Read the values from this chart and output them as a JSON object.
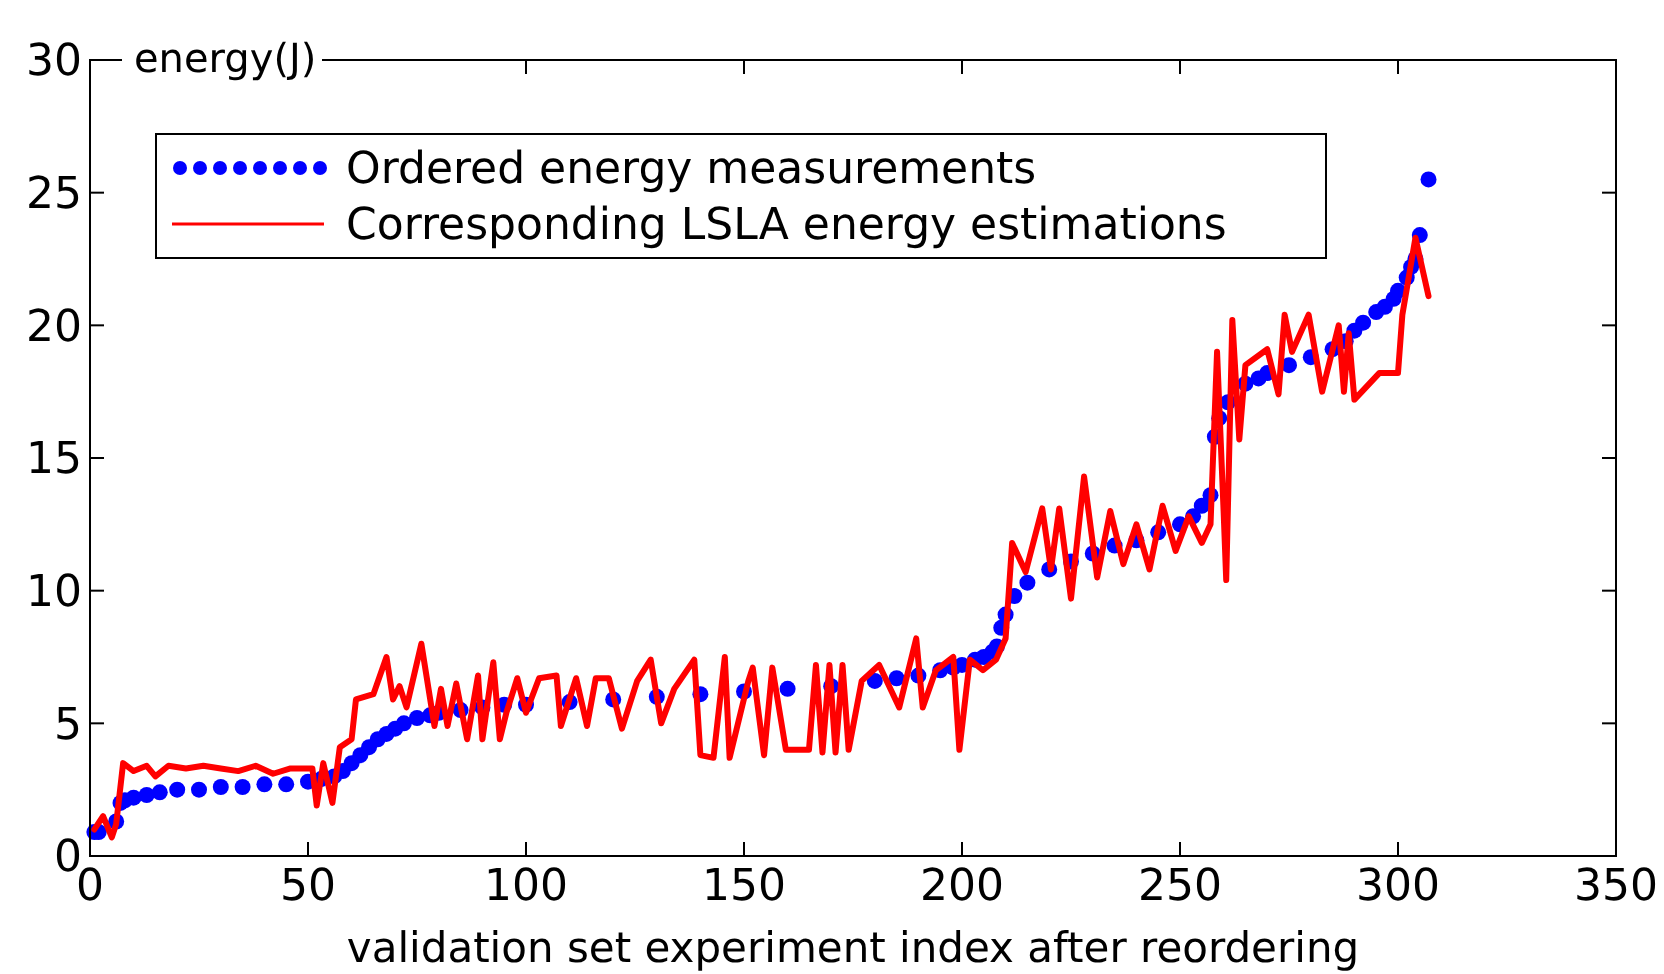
{
  "chart_data": {
    "type": "scatter",
    "xlabel": "validation set experiment index after reordering",
    "ylabel": "energy(J)",
    "xlim": [
      0,
      350
    ],
    "ylim": [
      0,
      30
    ],
    "xticks": [
      0,
      50,
      100,
      150,
      200,
      250,
      300,
      350
    ],
    "yticks": [
      0,
      5,
      10,
      15,
      20,
      25,
      30
    ],
    "grid": false,
    "legend": "top left",
    "series": [
      {
        "name": "Ordered energy measurements",
        "marker": "circle",
        "color": "#0000ff",
        "x": [
          1,
          2,
          6,
          7,
          8,
          10,
          13,
          16,
          20,
          25,
          30,
          35,
          40,
          45,
          50,
          53,
          56,
          58,
          60,
          62,
          64,
          66,
          68,
          70,
          72,
          75,
          78,
          80,
          85,
          90,
          95,
          100,
          110,
          120,
          130,
          140,
          150,
          160,
          170,
          180,
          185,
          190,
          195,
          198,
          200,
          203,
          205,
          207,
          208,
          209,
          210,
          212,
          215,
          220,
          225,
          230,
          235,
          240,
          245,
          250,
          253,
          255,
          257,
          258,
          259,
          261,
          265,
          268,
          270,
          275,
          280,
          285,
          288,
          290,
          292,
          295,
          297,
          299,
          300,
          302,
          303,
          304,
          305,
          307
        ],
        "values": [
          0.9,
          0.9,
          1.3,
          2.0,
          2.1,
          2.2,
          2.3,
          2.4,
          2.5,
          2.5,
          2.6,
          2.6,
          2.7,
          2.7,
          2.8,
          2.9,
          3.0,
          3.2,
          3.5,
          3.8,
          4.1,
          4.4,
          4.6,
          4.8,
          5.0,
          5.2,
          5.3,
          5.4,
          5.5,
          5.6,
          5.7,
          5.7,
          5.8,
          5.9,
          6.0,
          6.1,
          6.2,
          6.3,
          6.4,
          6.6,
          6.7,
          6.8,
          7.0,
          7.1,
          7.2,
          7.4,
          7.5,
          7.7,
          7.9,
          8.6,
          9.1,
          9.8,
          10.3,
          10.8,
          11.1,
          11.4,
          11.7,
          11.9,
          12.2,
          12.5,
          12.8,
          13.2,
          13.6,
          15.8,
          16.5,
          17.1,
          17.8,
          18.0,
          18.2,
          18.5,
          18.8,
          19.1,
          19.4,
          19.8,
          20.1,
          20.5,
          20.7,
          21.0,
          21.3,
          21.8,
          22.2,
          22.5,
          23.4,
          25.5
        ]
      },
      {
        "name": "Corresponding LSLA energy estimations",
        "type": "line",
        "marker": "none",
        "line_style": "solid",
        "color": "#ff0000",
        "x": [
          1,
          3,
          5,
          6,
          7.6,
          10,
          13,
          15,
          18,
          22,
          26,
          30,
          34,
          38,
          42,
          46,
          49,
          51,
          52,
          53.5,
          55.6,
          57.3,
          60,
          61,
          65,
          68,
          69.5,
          71,
          72.6,
          76,
          79,
          80.5,
          82,
          84,
          86.5,
          89,
          90,
          92.5,
          94,
          95.5,
          98,
          100,
          103,
          107,
          108,
          111.5,
          114,
          116,
          119,
          122,
          125.5,
          128.6,
          131,
          134,
          138.6,
          140,
          143,
          145.6,
          146.7,
          151,
          152,
          154.6,
          156.5,
          159.6,
          164.9,
          166.5,
          168,
          169.6,
          171,
          172.6,
          174,
          177,
          181,
          185.6,
          189.5,
          191,
          194,
          198,
          199.4,
          201.8,
          204.8,
          207.8,
          210,
          211.5,
          214.6,
          218.4,
          220.4,
          222.3,
          225,
          228,
          231,
          234,
          237,
          240,
          243,
          246,
          249,
          252,
          255,
          257,
          258.5,
          260,
          260.6,
          262,
          263.6,
          265,
          270,
          272.6,
          274,
          275.7,
          279.5,
          282.6,
          286.4,
          287.6,
          288.7,
          290,
          295.7,
          300,
          301,
          304,
          307
        ],
        "values": [
          1.0,
          1.5,
          0.7,
          1.2,
          3.5,
          3.2,
          3.4,
          3.0,
          3.4,
          3.3,
          3.4,
          3.3,
          3.2,
          3.4,
          3.1,
          3.3,
          3.3,
          3.3,
          1.9,
          3.5,
          2.0,
          4.1,
          4.4,
          5.9,
          6.1,
          7.5,
          5.9,
          6.4,
          5.6,
          8.0,
          4.9,
          6.3,
          4.9,
          6.5,
          4.4,
          6.8,
          4.4,
          7.3,
          4.4,
          5.4,
          6.7,
          5.4,
          6.7,
          6.8,
          4.9,
          6.7,
          4.9,
          6.7,
          6.7,
          4.8,
          6.6,
          7.4,
          5.0,
          6.3,
          7.4,
          3.8,
          3.7,
          7.5,
          3.7,
          6.6,
          7.1,
          3.8,
          7.1,
          4.0,
          4.0,
          7.2,
          3.9,
          7.2,
          3.9,
          7.2,
          4.0,
          6.6,
          7.2,
          5.6,
          8.2,
          5.6,
          7.0,
          7.5,
          4.0,
          7.4,
          7.0,
          7.4,
          8.2,
          11.8,
          10.7,
          13.1,
          10.8,
          13.1,
          9.7,
          14.3,
          10.5,
          13.0,
          11.0,
          12.5,
          10.8,
          13.2,
          11.5,
          12.8,
          11.8,
          12.5,
          19.0,
          13.0,
          10.4,
          20.2,
          15.7,
          18.5,
          19.1,
          17.4,
          20.4,
          19.0,
          20.4,
          17.5,
          20.0,
          17.5,
          19.7,
          17.2,
          18.2,
          18.2,
          20.4,
          23.3,
          21.1
        ]
      }
    ]
  }
}
